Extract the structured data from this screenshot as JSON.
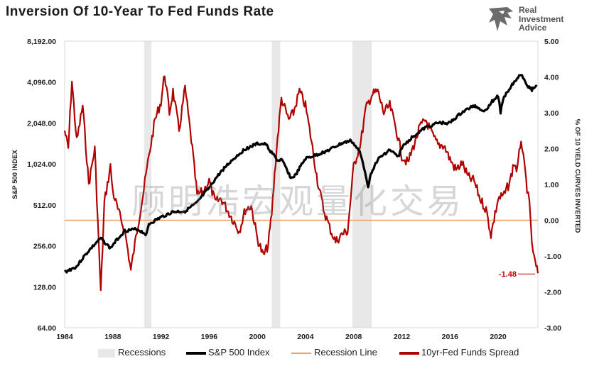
{
  "title": "Inversion Of 10-Year To Fed Funds Rate",
  "logo": {
    "line1": "Real",
    "line2": "Investment",
    "line3": "Advice"
  },
  "watermark": "顾明浩宏观量化交易",
  "colors": {
    "sp500": "#000000",
    "spread": "#b00000",
    "recession_line": "#e8a26a",
    "recession_band": "#e8e8e8",
    "annotation": "#c00000"
  },
  "chart_data": {
    "type": "line",
    "x_range": [
      1984,
      2023.3
    ],
    "x_ticks": [
      "1984",
      "1988",
      "1992",
      "1996",
      "2000",
      "2004",
      "2008",
      "2012",
      "2016",
      "2020"
    ],
    "left_axis": {
      "label": "S&P 500 INDEX",
      "scale": "log2",
      "range": [
        64,
        8192
      ],
      "ticks": [
        "8,192.00",
        "4,096.00",
        "2,048.00",
        "1,024.00",
        "512.00",
        "256.00",
        "128.00",
        "64.00"
      ],
      "tick_values": [
        8192,
        4096,
        2048,
        1024,
        512,
        256,
        128,
        64
      ]
    },
    "right_axis": {
      "label": "% OF 10 YIELD CURVES INVERTED",
      "range": [
        -3,
        5
      ],
      "ticks": [
        "5.00",
        "4.00",
        "3.00",
        "2.00",
        "1.00",
        "0.00",
        "-1.00",
        "-2.00",
        "-3.00"
      ],
      "tick_values": [
        5,
        4,
        3,
        2,
        1,
        0,
        -1,
        -2,
        -3
      ]
    },
    "recessions": [
      [
        1990.6,
        1991.2
      ],
      [
        2001.2,
        2001.9
      ],
      [
        2007.9,
        2009.5
      ]
    ],
    "recession_line_value": 0,
    "series": [
      {
        "name": "S&P 500 Index",
        "axis": "left",
        "points": [
          [
            1984,
            164
          ],
          [
            1985,
            180
          ],
          [
            1986,
            235
          ],
          [
            1987,
            290
          ],
          [
            1987.8,
            245
          ],
          [
            1988,
            260
          ],
          [
            1989,
            330
          ],
          [
            1990,
            340
          ],
          [
            1990.8,
            310
          ],
          [
            1991,
            370
          ],
          [
            1992,
            415
          ],
          [
            1993,
            455
          ],
          [
            1994,
            460
          ],
          [
            1995,
            530
          ],
          [
            1996,
            680
          ],
          [
            1997,
            900
          ],
          [
            1998,
            1110
          ],
          [
            1999,
            1320
          ],
          [
            2000,
            1440
          ],
          [
            2000.7,
            1430
          ],
          [
            2001,
            1300
          ],
          [
            2001.7,
            1080
          ],
          [
            2002,
            1100
          ],
          [
            2002.8,
            800
          ],
          [
            2003.2,
            850
          ],
          [
            2004,
            1120
          ],
          [
            2005,
            1200
          ],
          [
            2006,
            1300
          ],
          [
            2007,
            1450
          ],
          [
            2007.8,
            1520
          ],
          [
            2008.5,
            1250
          ],
          [
            2009.2,
            700
          ],
          [
            2009.5,
            900
          ],
          [
            2010,
            1100
          ],
          [
            2011,
            1300
          ],
          [
            2011.7,
            1150
          ],
          [
            2012,
            1350
          ],
          [
            2013,
            1650
          ],
          [
            2014,
            1900
          ],
          [
            2015,
            2050
          ],
          [
            2016,
            2050
          ],
          [
            2017,
            2450
          ],
          [
            2018,
            2750
          ],
          [
            2018.9,
            2500
          ],
          [
            2019.5,
            2950
          ],
          [
            2020,
            3250
          ],
          [
            2020.2,
            2450
          ],
          [
            2020.5,
            3200
          ],
          [
            2021,
            3750
          ],
          [
            2021.9,
            4700
          ],
          [
            2022.5,
            3800
          ],
          [
            2022.8,
            3600
          ],
          [
            2023.2,
            3900
          ]
        ]
      },
      {
        "name": "10yr-Fed Funds Spread",
        "axis": "right",
        "points": [
          [
            1984,
            2.5
          ],
          [
            1984.3,
            2.0
          ],
          [
            1984.6,
            3.9
          ],
          [
            1985,
            2.2
          ],
          [
            1985.5,
            3.2
          ],
          [
            1986,
            1.0
          ],
          [
            1986.5,
            2.0
          ],
          [
            1987,
            -2.0
          ],
          [
            1987.3,
            0.5
          ],
          [
            1987.8,
            1.5
          ],
          [
            1988,
            0.8
          ],
          [
            1988.5,
            0.2
          ],
          [
            1989,
            -0.3
          ],
          [
            1989.5,
            -1.4
          ],
          [
            1990,
            -0.3
          ],
          [
            1990.5,
            0.7
          ],
          [
            1991,
            1.8
          ],
          [
            1991.5,
            2.8
          ],
          [
            1992,
            3.3
          ],
          [
            1992.3,
            4.1
          ],
          [
            1992.7,
            3.0
          ],
          [
            1993,
            3.6
          ],
          [
            1993.5,
            2.5
          ],
          [
            1994,
            3.7
          ],
          [
            1994.6,
            2.0
          ],
          [
            1995,
            0.7
          ],
          [
            1995.5,
            0.8
          ],
          [
            1996,
            1.1
          ],
          [
            1996.5,
            0.5
          ],
          [
            1997,
            0.6
          ],
          [
            1997.5,
            0.3
          ],
          [
            1998,
            0.0
          ],
          [
            1998.5,
            -0.3
          ],
          [
            1999,
            0.3
          ],
          [
            1999.5,
            0.4
          ],
          [
            2000,
            -0.5
          ],
          [
            2000.5,
            -1.0
          ],
          [
            2000.9,
            -0.7
          ],
          [
            2001.2,
            0.2
          ],
          [
            2001.6,
            2.0
          ],
          [
            2002,
            3.4
          ],
          [
            2002.6,
            2.8
          ],
          [
            2003,
            3.0
          ],
          [
            2003.5,
            3.6
          ],
          [
            2004,
            3.2
          ],
          [
            2004.5,
            2.2
          ],
          [
            2005,
            1.1
          ],
          [
            2005.5,
            0.3
          ],
          [
            2006,
            -0.2
          ],
          [
            2006.5,
            -0.6
          ],
          [
            2007,
            -0.4
          ],
          [
            2007.5,
            -0.3
          ],
          [
            2008,
            1.5
          ],
          [
            2008.6,
            2.2
          ],
          [
            2009,
            3.1
          ],
          [
            2009.5,
            3.5
          ],
          [
            2010,
            3.6
          ],
          [
            2010.5,
            3.0
          ],
          [
            2011,
            3.2
          ],
          [
            2011.5,
            2.6
          ],
          [
            2012,
            1.8
          ],
          [
            2012.5,
            1.6
          ],
          [
            2013,
            2.1
          ],
          [
            2013.5,
            2.6
          ],
          [
            2014,
            2.8
          ],
          [
            2014.5,
            2.4
          ],
          [
            2015,
            2.1
          ],
          [
            2015.5,
            2.1
          ],
          [
            2016,
            1.7
          ],
          [
            2016.5,
            1.4
          ],
          [
            2017,
            1.6
          ],
          [
            2017.5,
            1.2
          ],
          [
            2018,
            1.1
          ],
          [
            2018.5,
            0.6
          ],
          [
            2019,
            0.3
          ],
          [
            2019.4,
            -0.4
          ],
          [
            2020,
            0.6
          ],
          [
            2020.5,
            0.7
          ],
          [
            2021,
            1.1
          ],
          [
            2021.3,
            1.6
          ],
          [
            2021.6,
            1.4
          ],
          [
            2021.9,
            2.3
          ],
          [
            2022.1,
            1.7
          ],
          [
            2022.4,
            0.9
          ],
          [
            2022.6,
            0.4
          ],
          [
            2022.8,
            -0.6
          ],
          [
            2023,
            -1.1
          ],
          [
            2023.3,
            -1.48
          ]
        ]
      }
    ],
    "annotation": {
      "text": "-1.48",
      "value": -1.48
    }
  },
  "legend": [
    {
      "label": "Recessions",
      "kind": "band"
    },
    {
      "label": "S&P 500 Index",
      "kind": "line-black"
    },
    {
      "label": "Recession Line",
      "kind": "line-orange"
    },
    {
      "label": "10yr-Fed Funds Spread",
      "kind": "line-red"
    }
  ]
}
